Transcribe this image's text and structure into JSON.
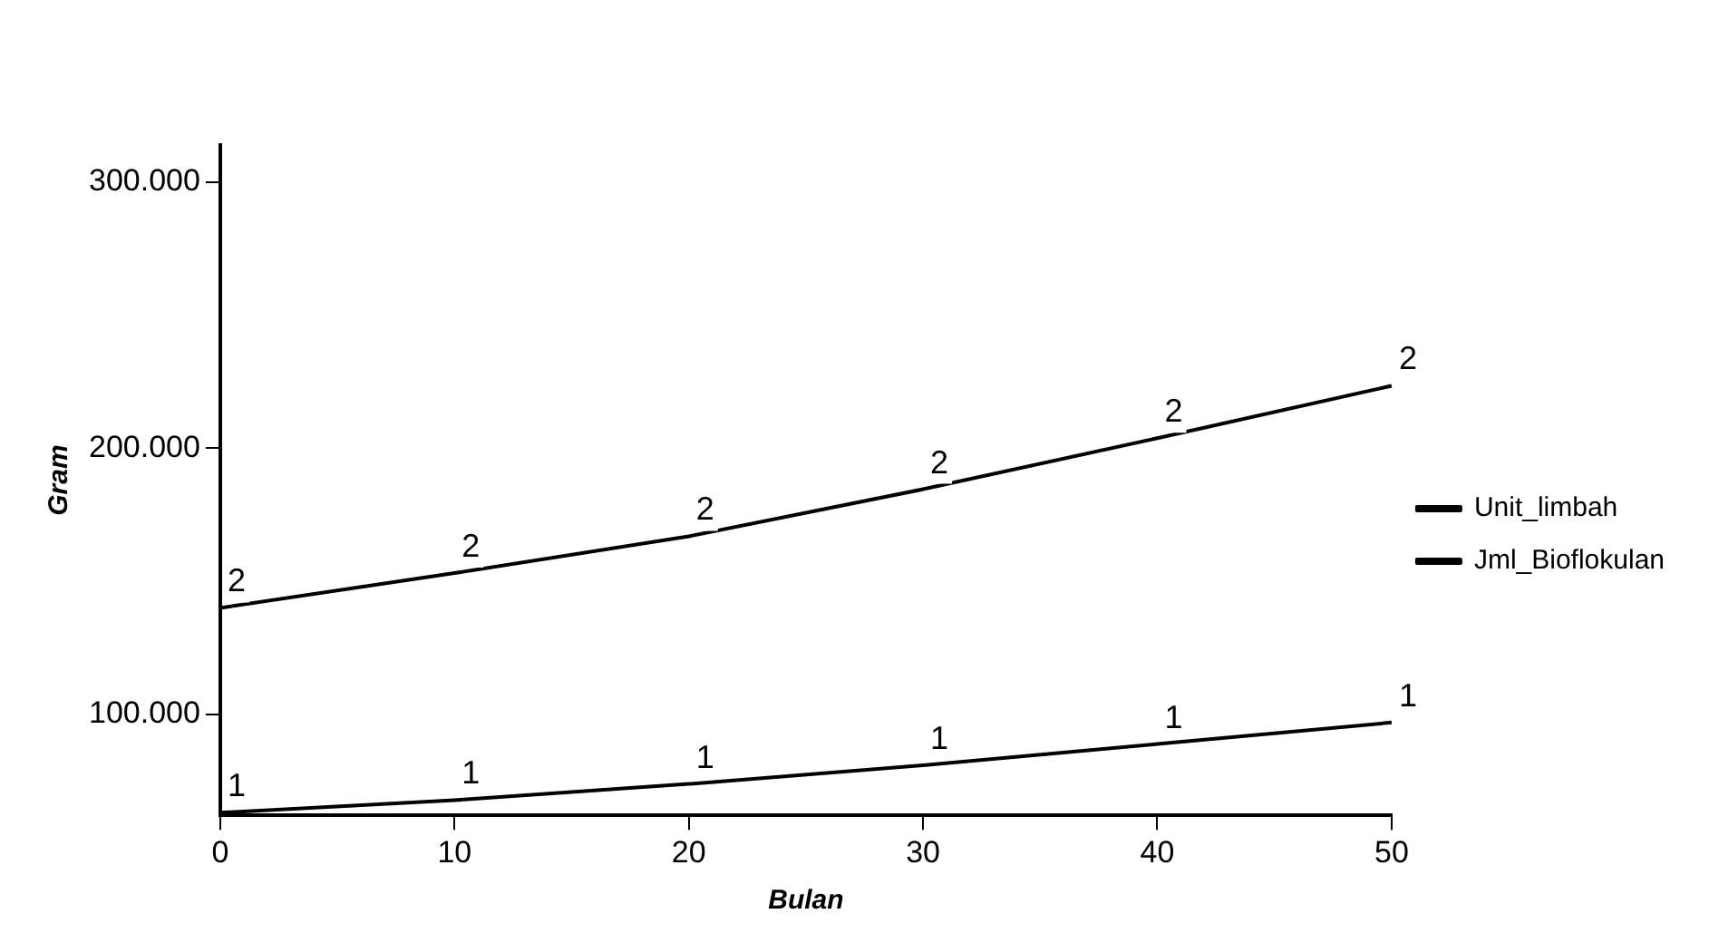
{
  "chart_data": {
    "type": "line",
    "xlabel": "Bulan",
    "ylabel": "Gram",
    "x": [
      0,
      10,
      20,
      30,
      40,
      50
    ],
    "series": [
      {
        "name": "Unit_limbah",
        "color": "#000000",
        "values": [
          63000,
          67700,
          73800,
          80800,
          88800,
          96900
        ]
      },
      {
        "name": "Jml_Bioflokulan",
        "color": "#000000",
        "values": [
          140000,
          153100,
          166900,
          184600,
          203800,
          223500
        ]
      }
    ],
    "xlim": [
      0,
      50
    ],
    "xticks": [
      0,
      10,
      20,
      30,
      40,
      50
    ],
    "ylim": [
      62000,
      314000
    ],
    "yticks": [
      {
        "value": 100000,
        "label": "100.000"
      },
      {
        "value": 200000,
        "label": "200.000"
      },
      {
        "value": 300000,
        "label": "300.000"
      }
    ],
    "grid": false,
    "legend": "right",
    "marker": "none",
    "line_style": "solid",
    "annotations": [
      {
        "text": "1",
        "x": 0,
        "y": 63000
      },
      {
        "text": "1",
        "x": 10,
        "y": 67700
      },
      {
        "text": "1",
        "x": 20,
        "y": 73800
      },
      {
        "text": "1",
        "x": 30,
        "y": 80800
      },
      {
        "text": "1",
        "x": 40,
        "y": 88800
      },
      {
        "text": "1",
        "x": 50,
        "y": 96900
      },
      {
        "text": "2",
        "x": 0,
        "y": 140000
      },
      {
        "text": "2",
        "x": 10,
        "y": 153100
      },
      {
        "text": "2",
        "x": 20,
        "y": 166900
      },
      {
        "text": "2",
        "x": 30,
        "y": 184600
      },
      {
        "text": "2",
        "x": 40,
        "y": 203800
      },
      {
        "text": "2",
        "x": 50,
        "y": 223500
      }
    ]
  }
}
